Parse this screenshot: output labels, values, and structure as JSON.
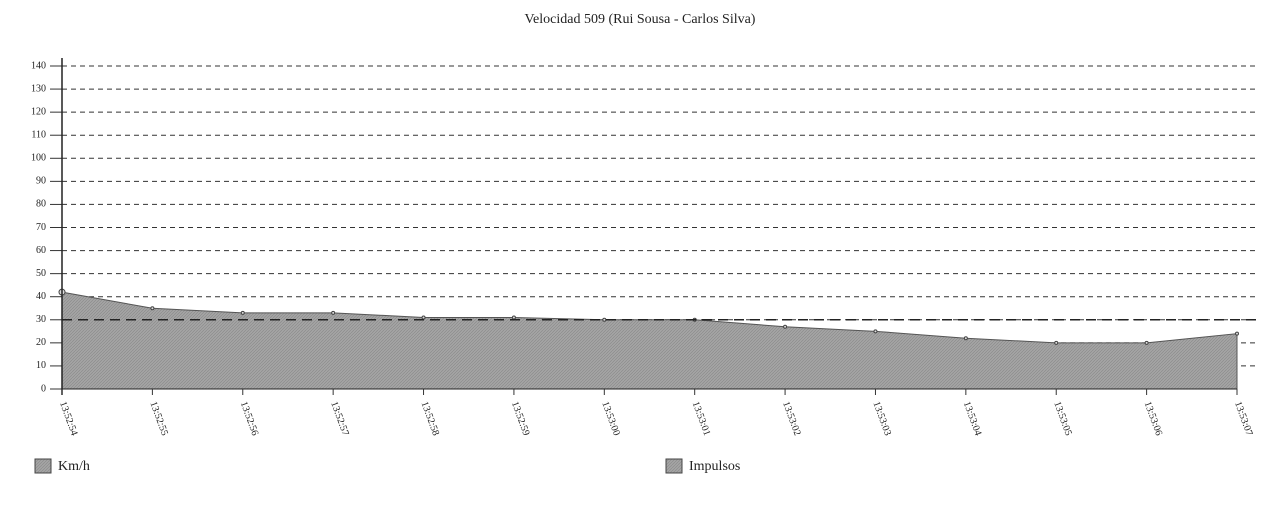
{
  "chart_data": {
    "type": "area",
    "title": "Velocidad 509 (Rui Sousa - Carlos Silva)",
    "categories": [
      "13:52:54",
      "13:52:55",
      "13:52:56",
      "13:52:57",
      "13:52:58",
      "13:52:59",
      "13:53:00",
      "13:53:01",
      "13:53:02",
      "13:53:03",
      "13:53:04",
      "13:53:05",
      "13:53:06",
      "13:53:07"
    ],
    "series": [
      {
        "name": "Km/h",
        "color": "#9c9c9c",
        "values": [
          42,
          35,
          33,
          33,
          31,
          31,
          30,
          30,
          27,
          25,
          22,
          20,
          20,
          24
        ]
      }
    ],
    "legend": [
      "Km/h",
      "Impulsos"
    ],
    "reference_line": 30,
    "ylim": [
      0,
      140
    ],
    "yticks": [
      0,
      10,
      20,
      30,
      40,
      50,
      60,
      70,
      80,
      90,
      100,
      110,
      120,
      130,
      140
    ],
    "grid": true
  }
}
